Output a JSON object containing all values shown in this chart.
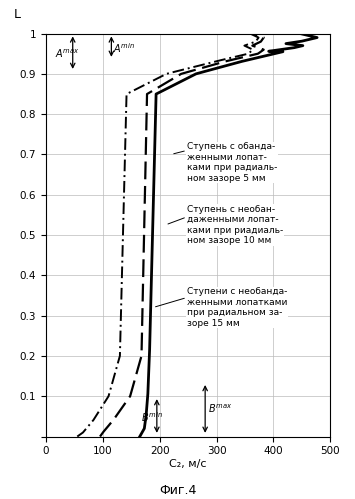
{
  "title": "Фиг.4",
  "xlabel": "C₂, м/с",
  "ylabel": "L",
  "xlim": [
    0,
    500
  ],
  "ylim": [
    0,
    1.0
  ],
  "xticks": [
    0,
    100,
    200,
    300,
    400,
    500
  ],
  "yticks": [
    0,
    0.1,
    0.2,
    0.3,
    0.4,
    0.5,
    0.6,
    0.7,
    0.8,
    0.9,
    1.0
  ],
  "label1": "Ступень с обанда-\nженными лопат-\nками при радиаль-\nном зазоре 5 мм",
  "label2": "Ступень с необан-\nдаженными лопат-\nками при риадиаль-\nном зазоре 10 мм",
  "label3": "Ступени с необанда-\nженными лопатками\nпри радиальном за-\nзоре 15 мм",
  "background_color": "#ffffff",
  "grid_color": "#bbbbbb",
  "line_color": "#000000"
}
